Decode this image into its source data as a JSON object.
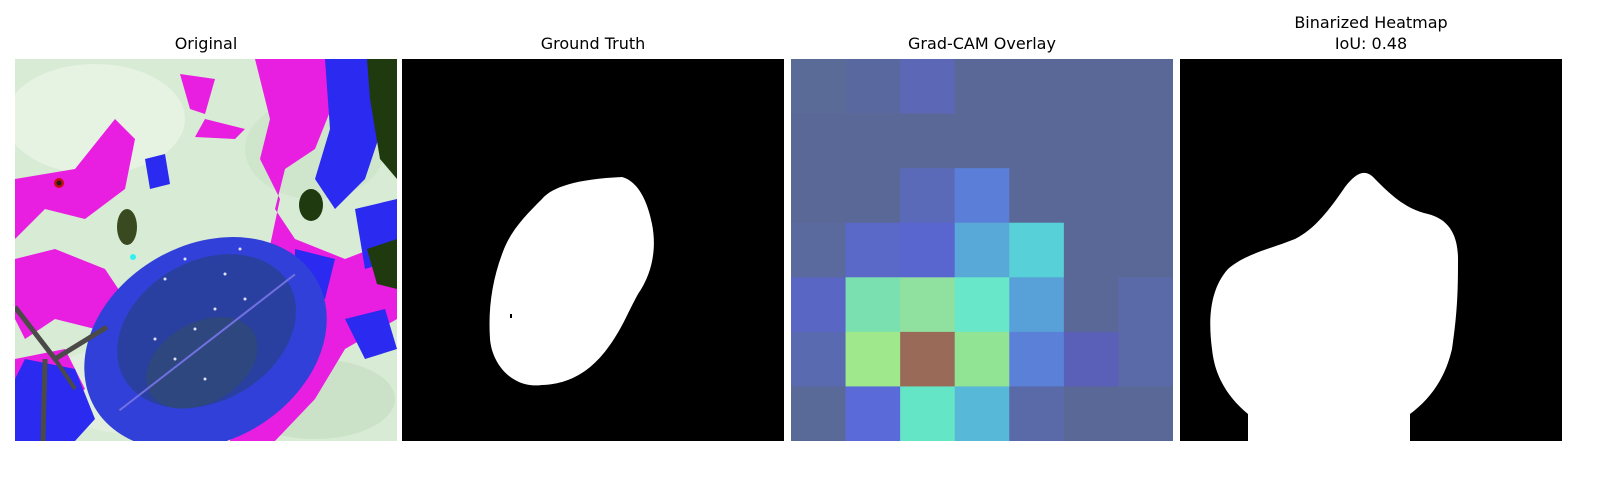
{
  "panels": [
    {
      "title": "Original"
    },
    {
      "title": "Ground Truth"
    },
    {
      "title": "Grad-CAM Overlay"
    },
    {
      "title_lines": [
        "Binarized Heatmap",
        "IoU: 0.48"
      ]
    }
  ],
  "gradcam_grid": [
    [
      "#5b6b98",
      "#5a68a0",
      "#5c67b6",
      "#5a6898",
      "#5a6898",
      "#5a6898",
      "#5a6898"
    ],
    [
      "#5a6898",
      "#5a6898",
      "#5a6898",
      "#5a6898",
      "#5a6898",
      "#5a6898",
      "#5a6898"
    ],
    [
      "#5a6898",
      "#5a6898",
      "#5a6ab8",
      "#5b7fd8",
      "#5a6898",
      "#5a6898",
      "#5a6898"
    ],
    [
      "#5a6a9e",
      "#5a68c8",
      "#5a66d0",
      "#58a8d8",
      "#58d0d8",
      "#5a6898",
      "#5a6898"
    ],
    [
      "#5a66c4",
      "#7ae0b0",
      "#90e0a0",
      "#68e8c8",
      "#58a0d8",
      "#5a6898",
      "#5a6aa8"
    ],
    [
      "#5a6ab0",
      "#a0e88c",
      "#9a6a58",
      "#90e494",
      "#5a80d8",
      "#5a60b8",
      "#5a6aa8"
    ],
    [
      "#5a6a98",
      "#5a6ad8",
      "#64e6c6",
      "#58b8d8",
      "#5a6aa8",
      "#5a6898",
      "#5a6898"
    ]
  ]
}
